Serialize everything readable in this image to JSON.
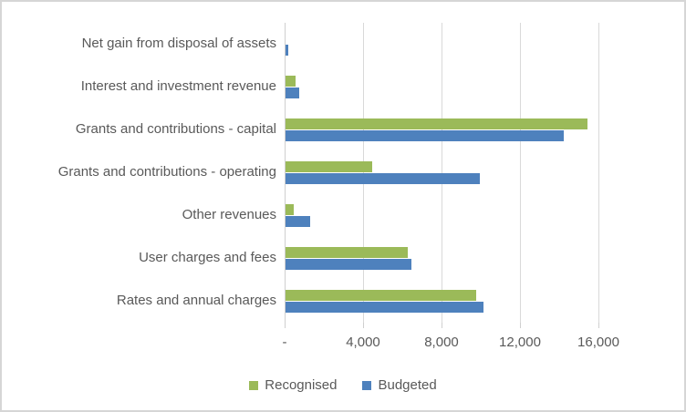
{
  "chart_data": {
    "type": "bar",
    "orientation": "horizontal",
    "title": "",
    "categories": [
      "Net gain from disposal of assets",
      "Interest and investment revenue",
      "Grants and contributions - capital",
      "Grants and contributions - operating",
      "Other revenues",
      "User charges and fees",
      "Rates and annual charges"
    ],
    "series": [
      {
        "name": "Recognised",
        "color": "#9BBA59",
        "values": [
          0,
          500,
          15400,
          4400,
          400,
          6250,
          9700
        ]
      },
      {
        "name": "Budgeted",
        "color": "#4E81BD",
        "values": [
          150,
          700,
          14200,
          9900,
          1250,
          6400,
          10100
        ]
      }
    ],
    "x_ticks": {
      "labels": [
        "-",
        "4,000",
        "8,000",
        "12,000",
        "16,000"
      ],
      "values": [
        0,
        4000,
        8000,
        12000,
        16000
      ]
    },
    "xlim": [
      0,
      20000
    ],
    "grid": true,
    "legend_position": "bottom",
    "gridline_color": "#d9d9d9",
    "text_color": "#595959"
  }
}
